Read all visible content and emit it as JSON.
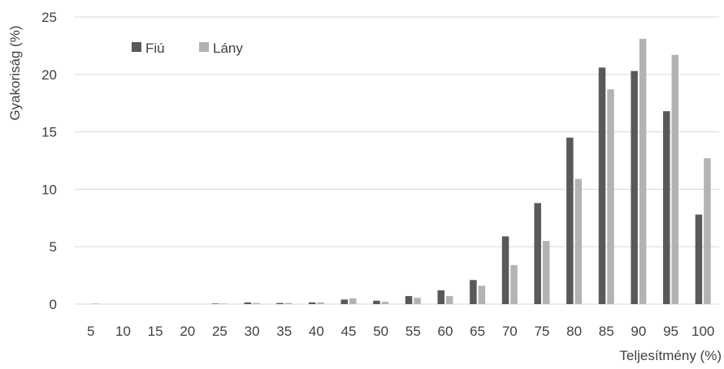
{
  "chart_data": {
    "type": "bar",
    "ylabel": "Gyakoriság (%)",
    "xlabel": "Teljesítmény (%)",
    "ylim": [
      0,
      25
    ],
    "yticks": [
      0,
      5,
      10,
      15,
      20,
      25
    ],
    "grid": true,
    "legend_position": "top-left",
    "categories": [
      "5",
      "10",
      "15",
      "20",
      "25",
      "30",
      "35",
      "40",
      "45",
      "50",
      "55",
      "60",
      "65",
      "70",
      "75",
      "80",
      "85",
      "90",
      "95",
      "100"
    ],
    "series": [
      {
        "name": "Fiú",
        "color": "#595959",
        "values": [
          0,
          0,
          0,
          0,
          0.05,
          0.15,
          0.1,
          0.15,
          0.4,
          0.3,
          0.7,
          1.2,
          2.1,
          5.9,
          8.8,
          14.5,
          20.6,
          20.3,
          16.8,
          7.8
        ]
      },
      {
        "name": "Lány",
        "color": "#b3b3b3",
        "values": [
          0.05,
          0,
          0,
          0,
          0.05,
          0.1,
          0.1,
          0.15,
          0.5,
          0.2,
          0.55,
          0.7,
          1.6,
          3.4,
          5.5,
          10.9,
          18.7,
          23.1,
          21.7,
          12.7
        ]
      }
    ]
  }
}
